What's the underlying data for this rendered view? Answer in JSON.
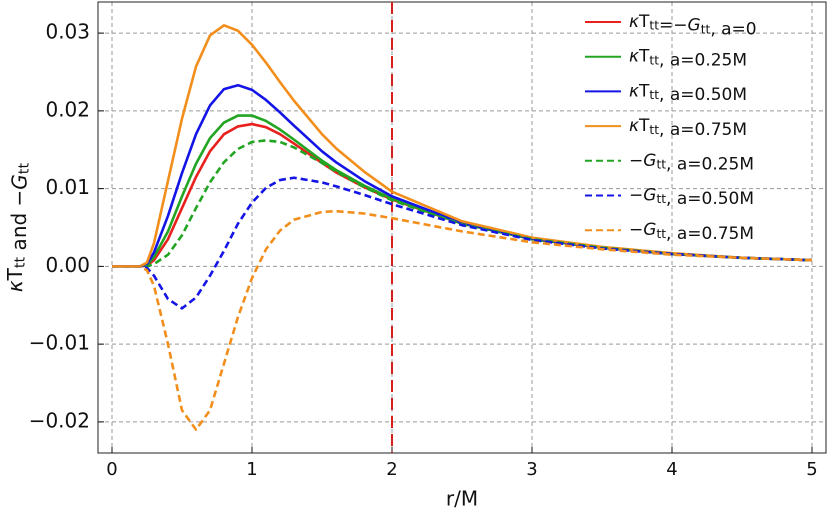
{
  "chart_data": {
    "type": "line",
    "xlabel": "r/M",
    "ylabel": "κTtt and −Gtt",
    "x": [
      0,
      0.2,
      0.25,
      0.3,
      0.4,
      0.5,
      0.6,
      0.7,
      0.8,
      0.9,
      1.0,
      1.1,
      1.2,
      1.3,
      1.5,
      1.6,
      1.8,
      2.0,
      2.5,
      3,
      3.5,
      4,
      4.5,
      5
    ],
    "series": [
      {
        "name": "κTtt=−Gtt, a=0",
        "color": "#e8201e",
        "dashed": false,
        "values": [
          0,
          0,
          0.0001,
          0.0008,
          0.0035,
          0.0075,
          0.0115,
          0.0148,
          0.017,
          0.018,
          0.0183,
          0.0179,
          0.017,
          0.0158,
          0.0133,
          0.0121,
          0.0102,
          0.0086,
          0.0055,
          0.0035,
          0.0024,
          0.0016,
          0.0011,
          0.0008
        ]
      },
      {
        "name": "κTtt, a=0.25M",
        "color": "#22a522",
        "dashed": false,
        "values": [
          0,
          0,
          0.0002,
          0.0012,
          0.0045,
          0.009,
          0.0132,
          0.0165,
          0.0185,
          0.0194,
          0.0194,
          0.0187,
          0.0176,
          0.0163,
          0.0136,
          0.0124,
          0.0104,
          0.0087,
          0.0055,
          0.0035,
          0.0024,
          0.0016,
          0.0011,
          0.0008
        ]
      },
      {
        "name": "κTtt, a=0.50M",
        "color": "#1414e6",
        "dashed": false,
        "values": [
          0,
          0,
          0.0003,
          0.0018,
          0.0065,
          0.012,
          0.017,
          0.0207,
          0.0228,
          0.0233,
          0.0227,
          0.0214,
          0.0198,
          0.0181,
          0.0148,
          0.0134,
          0.011,
          0.009,
          0.0056,
          0.0036,
          0.0024,
          0.0016,
          0.0011,
          0.0008
        ]
      },
      {
        "name": "κTtt, a=0.75M",
        "color": "#f28e1c",
        "dashed": false,
        "values": [
          0,
          0,
          0.0005,
          0.003,
          0.011,
          0.019,
          0.0257,
          0.0297,
          0.031,
          0.0303,
          0.0285,
          0.0262,
          0.0237,
          0.0213,
          0.017,
          0.0152,
          0.0122,
          0.0096,
          0.0058,
          0.0037,
          0.0025,
          0.0017,
          0.0011,
          0.0008
        ]
      },
      {
        "name": "−Gtt, a=0.25M",
        "color": "#22a522",
        "dashed": true,
        "values": [
          0,
          0,
          0,
          0.0003,
          0.0015,
          0.004,
          0.0075,
          0.0108,
          0.0134,
          0.0151,
          0.016,
          0.0162,
          0.016,
          0.0153,
          0.0133,
          0.0122,
          0.0102,
          0.0085,
          0.0054,
          0.0035,
          0.0024,
          0.0016,
          0.0011,
          0.0008
        ]
      },
      {
        "name": "−Gtt, a=0.50M",
        "color": "#1414e6",
        "dashed": true,
        "values": [
          0,
          0,
          -0.0002,
          -0.0012,
          -0.0042,
          -0.0054,
          -0.004,
          -0.0012,
          0.002,
          0.0055,
          0.0082,
          0.0101,
          0.0111,
          0.0114,
          0.0108,
          0.0103,
          0.0092,
          0.008,
          0.0053,
          0.0034,
          0.0023,
          0.0016,
          0.0011,
          0.0008
        ]
      },
      {
        "name": "−Gtt, a=0.75M",
        "color": "#f28e1c",
        "dashed": true,
        "values": [
          0,
          0,
          -0.0005,
          -0.0025,
          -0.01,
          -0.0185,
          -0.021,
          -0.0185,
          -0.0125,
          -0.0065,
          -0.0015,
          0.0022,
          0.0046,
          0.006,
          0.007,
          0.0071,
          0.0068,
          0.0062,
          0.0045,
          0.0031,
          0.0022,
          0.0015,
          0.0011,
          0.0008
        ]
      }
    ],
    "xlim": [
      -0.1,
      5.1
    ],
    "ylim": [
      -0.024,
      0.034
    ],
    "xticks": [
      0,
      1,
      2,
      3,
      4,
      5
    ],
    "yticks": [
      {
        "value": -0.02,
        "label": "−0.02"
      },
      {
        "value": -0.01,
        "label": "−0.01"
      },
      {
        "value": 0,
        "label": "0.00"
      },
      0.01,
      0.02,
      0.03
    ],
    "grid": true,
    "legend": "upper right",
    "vline": {
      "x": 2,
      "color": "#d62020"
    }
  }
}
